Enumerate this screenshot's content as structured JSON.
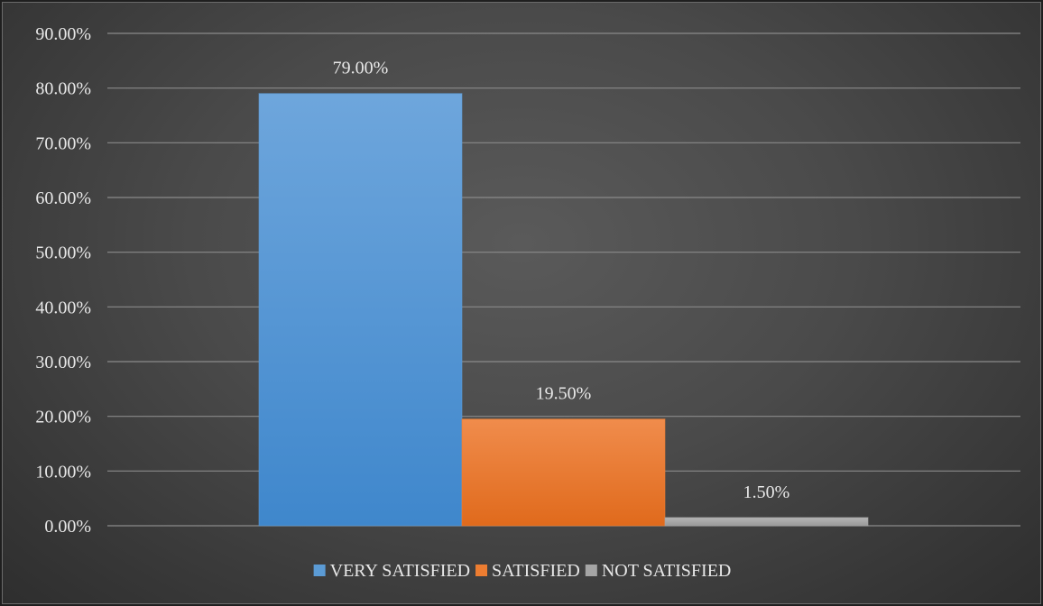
{
  "chart_data": {
    "type": "bar",
    "title": "",
    "xlabel": "",
    "ylabel": "",
    "ylim": [
      0,
      0.9
    ],
    "yticks": [
      "0.00%",
      "10.00%",
      "20.00%",
      "30.00%",
      "40.00%",
      "50.00%",
      "60.00%",
      "70.00%",
      "80.00%",
      "90.00%"
    ],
    "grid": true,
    "legend_position": "bottom",
    "series": [
      {
        "name": "VERY SATISFIED",
        "value": 0.79,
        "label": "79.00%",
        "color": "#5b9bd5"
      },
      {
        "name": "SATISFIED",
        "value": 0.195,
        "label": "19.50%",
        "color": "#ed7d31"
      },
      {
        "name": "NOT SATISFIED",
        "value": 0.015,
        "label": "1.50%",
        "color": "#a5a5a5"
      }
    ]
  }
}
